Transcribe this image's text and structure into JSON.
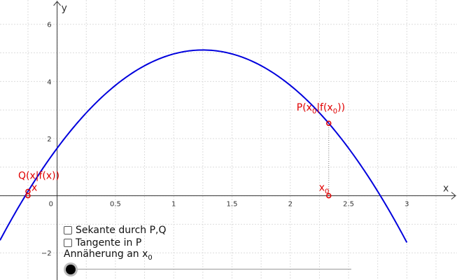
{
  "axes": {
    "x_label": "x",
    "y_label": "y",
    "origin_label": "0",
    "x_ticks": [
      {
        "value": 0.5,
        "label": "0.5"
      },
      {
        "value": 1,
        "label": "1"
      },
      {
        "value": 1.5,
        "label": "1.5"
      },
      {
        "value": 2,
        "label": "2"
      },
      {
        "value": 2.5,
        "label": "2.5"
      },
      {
        "value": 3,
        "label": "3"
      }
    ],
    "y_ticks": [
      {
        "value": 6,
        "label": "6"
      },
      {
        "value": 4,
        "label": "4"
      },
      {
        "value": 2,
        "label": "2"
      },
      {
        "value": -2,
        "label": "−2"
      }
    ],
    "x_range": [
      -0.49,
      3.43
    ],
    "y_range": [
      -2.95,
      6.85
    ],
    "grid": true
  },
  "function": {
    "expression": "f(x) = -2.2*(x-1.25)^2 + 5.1",
    "a": -2.2,
    "h": 1.25,
    "k": 5.1,
    "domain": [
      -0.49,
      3.0
    ],
    "color": "#0000dd"
  },
  "points": {
    "P": {
      "label_main": "P(x",
      "label_sub1": "0",
      "label_mid": "|f(x",
      "label_sub2": "0",
      "label_end": "))",
      "x": 2.33
    },
    "Q": {
      "label": "Q(x|f(x))",
      "x": -0.25
    },
    "x_marker_label": "x",
    "x0_marker_label": "x",
    "x0_marker_sub": "0",
    "color": "#e00000"
  },
  "controls": {
    "secant_label": "Sekante durch P,Q",
    "secant_checked": false,
    "tangent_label": "Tangente in P",
    "tangent_checked": false,
    "slider_label": "Annäherung an x",
    "slider_label_sub": "0",
    "slider_value": 0.0
  }
}
